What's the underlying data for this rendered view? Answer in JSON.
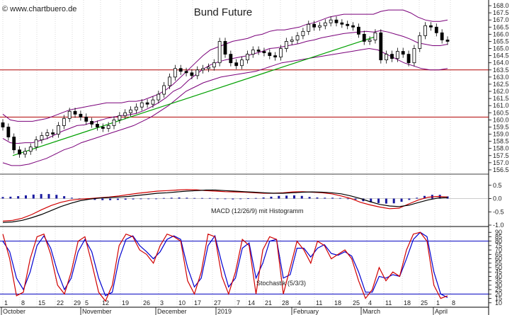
{
  "watermark": "© www.chartbuero.de",
  "title": "Bund Future",
  "colors": {
    "candle": "#000000",
    "bollinger": "#7a007a",
    "trendline": "#00a000",
    "support_lines": "#b00000",
    "macd": "#000000",
    "signal": "#d00000",
    "histogram": "#1a1aa0",
    "stoch_k": "#d00000",
    "stoch_d": "#0000d0",
    "stoch_levels": "#0000c0",
    "grid": "#c0c0c0"
  },
  "chart_data": [
    {
      "type": "candlestick",
      "title": "Bund Future",
      "ylim": [
        156.2,
        168.2
      ],
      "y_ticks": [
        "156.5",
        "157.0",
        "157.5",
        "158.0",
        "158.5",
        "159.0",
        "159.5",
        "160.0",
        "160.5",
        "161.0",
        "161.5",
        "162.0",
        "162.5",
        "163.0",
        "163.5",
        "164.0",
        "164.5",
        "165.0",
        "165.5",
        "166.0",
        "166.5",
        "167.0",
        "167.5",
        "168.0"
      ],
      "horizontal_lines": [
        163.5,
        160.2
      ],
      "trendline": {
        "from": {
          "x": "2018-10-11",
          "y": 157.5
        },
        "to": {
          "x": "2019-03-06",
          "y": 165.8
        }
      },
      "approx_closes": [
        159.5,
        158.8,
        157.9,
        157.6,
        157.8,
        158.1,
        158.6,
        158.9,
        159.1,
        159.0,
        159.6,
        160.1,
        160.6,
        160.4,
        160.2,
        159.9,
        159.7,
        159.5,
        159.4,
        159.6,
        160.0,
        160.3,
        160.5,
        160.7,
        160.9,
        161.2,
        161.1,
        161.4,
        161.8,
        162.4,
        163.0,
        163.6,
        163.4,
        163.3,
        163.1,
        163.5,
        163.6,
        163.7,
        164.0,
        165.5,
        164.6,
        164.0,
        163.8,
        164.2,
        164.6,
        164.9,
        164.8,
        164.7,
        164.5,
        164.4,
        165.0,
        165.5,
        165.6,
        165.9,
        166.2,
        166.7,
        166.5,
        166.6,
        166.8,
        167.0,
        166.8,
        166.7,
        166.6,
        166.5,
        166.0,
        165.5,
        165.6,
        166.1,
        164.2,
        164.6,
        164.3,
        164.8,
        164.6,
        164.0,
        165.0,
        165.9,
        166.6,
        166.5,
        166.1,
        165.6,
        165.5
      ],
      "approx_bollinger_upper": [
        160.4,
        160.0,
        159.9,
        159.9,
        159.9,
        160.0,
        160.1,
        160.3,
        160.5,
        160.7,
        160.8,
        160.9,
        161.0,
        161.1,
        161.2,
        161.2,
        161.2,
        161.3,
        161.3,
        161.4,
        161.6,
        161.8,
        162.1,
        162.5,
        163.0,
        163.5,
        164.0,
        164.5,
        164.9,
        165.1,
        165.3,
        165.5,
        165.6,
        165.7,
        165.9,
        166.0,
        166.2,
        166.3,
        166.3,
        166.4,
        166.5,
        166.7,
        166.8,
        167.0,
        167.2,
        167.3,
        167.4,
        167.4,
        167.4,
        167.4,
        167.4,
        167.6,
        167.7,
        167.7,
        167.7,
        167.5,
        167.2,
        167.0,
        166.9,
        166.9,
        167.0
      ],
      "approx_bollinger_lower": [
        157.0,
        156.8,
        156.8,
        156.9,
        157.1,
        157.3,
        157.6,
        157.9,
        158.1,
        158.4,
        158.6,
        158.8,
        159.0,
        159.2,
        159.4,
        159.6,
        159.9,
        160.2,
        160.6,
        161.0,
        161.5,
        162.0,
        162.3,
        162.6,
        162.8,
        163.0,
        163.1,
        163.2,
        163.3,
        163.4,
        163.6,
        163.8,
        164.0,
        164.1,
        164.2,
        164.3,
        164.4,
        164.5,
        164.6,
        164.7,
        164.8,
        164.9,
        165.0,
        164.9,
        164.6,
        164.3,
        164.0,
        163.8,
        163.6,
        163.5,
        163.5,
        163.6
      ]
    },
    {
      "type": "line",
      "title": "MACD (12/26/9) mit Histogramm",
      "ylim": [
        -1.0,
        0.6
      ],
      "y_ticks": [
        "0.5",
        "0.0",
        "-0.5",
        "-1.0"
      ],
      "series": [
        {
          "name": "MACD",
          "values": [
            -0.9,
            -0.88,
            -0.82,
            -0.72,
            -0.6,
            -0.45,
            -0.3,
            -0.18,
            -0.08,
            -0.02,
            0.02,
            0.04,
            0.06,
            0.08,
            0.12,
            0.16,
            0.2,
            0.22,
            0.25,
            0.28,
            0.3,
            0.32,
            0.32,
            0.3,
            0.28,
            0.26,
            0.24,
            0.22,
            0.2,
            0.2,
            0.22,
            0.24,
            0.25,
            0.24,
            0.22,
            0.18,
            0.1,
            0.0,
            -0.12,
            -0.22,
            -0.28,
            -0.3,
            -0.25,
            -0.15,
            -0.05,
            0.02,
            0.04
          ]
        },
        {
          "name": "Signal",
          "values": [
            -0.85,
            -0.82,
            -0.74,
            -0.6,
            -0.42,
            -0.26,
            -0.14,
            -0.06,
            -0.02,
            0.0,
            0.03,
            0.06,
            0.1,
            0.15,
            0.2,
            0.24,
            0.28,
            0.3,
            0.32,
            0.34,
            0.33,
            0.3,
            0.28,
            0.26,
            0.25,
            0.24,
            0.22,
            0.2,
            0.2,
            0.22,
            0.25,
            0.26,
            0.24,
            0.22,
            0.18,
            0.1,
            0.0,
            -0.14,
            -0.24,
            -0.32,
            -0.38,
            -0.36,
            -0.2,
            -0.05,
            0.05,
            0.08,
            0.06
          ]
        },
        {
          "name": "Histogramm",
          "values": [
            0.06,
            0.07,
            0.09,
            0.12,
            0.15,
            0.17,
            0.17,
            0.14,
            0.09,
            0.03,
            -0.01,
            -0.03,
            -0.05,
            -0.06,
            -0.06,
            -0.05,
            -0.04,
            -0.03,
            -0.02,
            -0.01,
            0.0,
            0.02,
            0.03,
            0.04,
            0.03,
            0.02,
            0.02,
            0.02,
            0.0,
            -0.02,
            -0.03,
            -0.02,
            0.01,
            0.02,
            0.04,
            0.07,
            0.1,
            0.11,
            0.12,
            0.1,
            0.06,
            0.04,
            0.03,
            0.03,
            0.02,
            0.0,
            -0.04,
            -0.1,
            -0.14,
            -0.17,
            -0.19,
            -0.18,
            -0.12,
            -0.05,
            0.03,
            0.1,
            0.14,
            0.14,
            0.08
          ]
        }
      ]
    },
    {
      "type": "line",
      "title": "Stochastik (5/3/3)",
      "ylim": [
        5,
        95
      ],
      "y_ticks": [
        "10",
        "15",
        "20",
        "25",
        "30",
        "35",
        "40",
        "45",
        "50",
        "55",
        "60",
        "65",
        "70",
        "75",
        "80",
        "85",
        "90"
      ],
      "levels": [
        80,
        20
      ],
      "series": [
        {
          "name": "%K",
          "values": [
            88,
            60,
            18,
            22,
            60,
            85,
            88,
            65,
            30,
            20,
            45,
            80,
            85,
            55,
            22,
            12,
            30,
            75,
            88,
            85,
            70,
            65,
            55,
            75,
            88,
            85,
            80,
            35,
            20,
            45,
            88,
            85,
            40,
            20,
            45,
            82,
            75,
            20,
            70,
            85,
            82,
            20,
            50,
            80,
            70,
            55,
            80,
            75,
            60,
            65,
            70,
            60,
            35,
            15,
            25,
            50,
            35,
            45,
            40,
            70,
            88,
            90,
            80,
            30,
            15,
            18
          ]
        },
        {
          "name": "%D",
          "values": [
            80,
            68,
            38,
            25,
            45,
            75,
            86,
            72,
            45,
            25,
            38,
            68,
            82,
            68,
            38,
            18,
            22,
            60,
            82,
            86,
            75,
            68,
            60,
            68,
            82,
            86,
            82,
            50,
            28,
            38,
            75,
            86,
            55,
            28,
            38,
            72,
            78,
            38,
            55,
            80,
            82,
            38,
            42,
            72,
            72,
            62,
            72,
            76,
            66,
            64,
            68,
            63,
            45,
            22,
            22,
            40,
            38,
            42,
            40,
            60,
            82,
            90,
            85,
            45,
            20,
            16
          ]
        }
      ]
    }
  ],
  "x_axis": {
    "day_ticks": [
      "1",
      "8",
      "15",
      "22",
      "29",
      "5",
      "12",
      "19",
      "26",
      "3",
      "10",
      "17",
      "27",
      "7",
      "14",
      "21",
      "28",
      "4",
      "11",
      "18",
      "25",
      "4",
      "11",
      "18",
      "25",
      "1",
      "8"
    ],
    "month_labels": [
      "October",
      "November",
      "December",
      "2019",
      "February",
      "March",
      "April"
    ]
  }
}
